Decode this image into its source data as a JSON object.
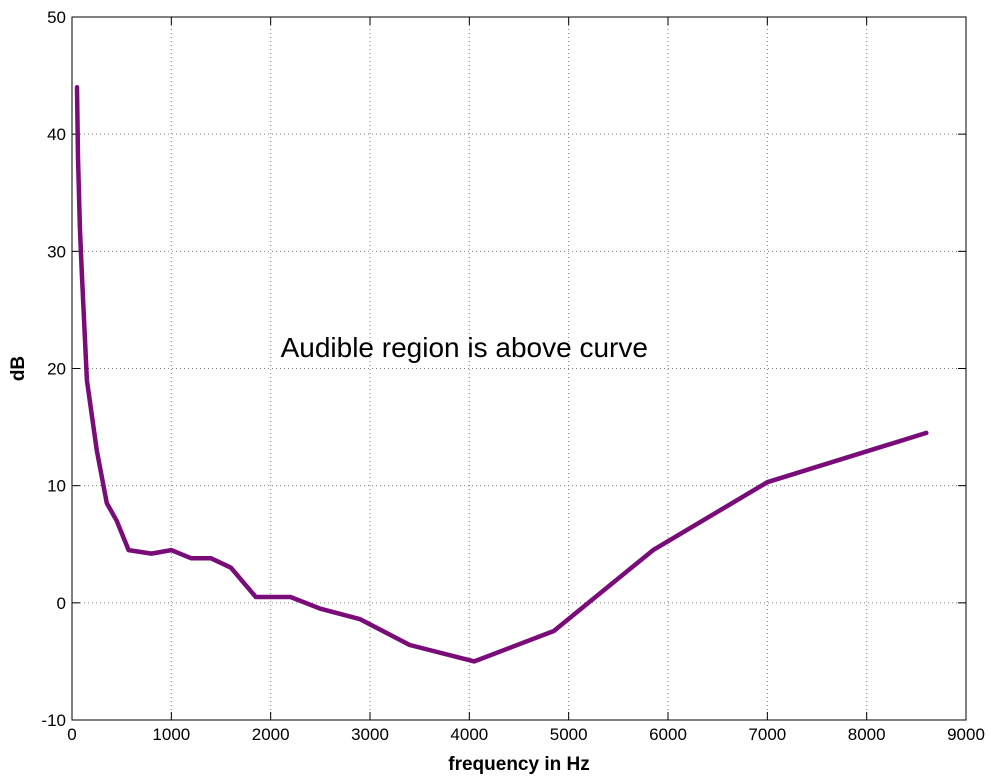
{
  "chart_data": {
    "type": "line",
    "title": "",
    "xlabel": "frequency in Hz",
    "ylabel": "dB",
    "xlim": [
      0,
      9000
    ],
    "ylim": [
      -10,
      50
    ],
    "xticks": [
      0,
      1000,
      2000,
      3000,
      4000,
      5000,
      6000,
      7000,
      8000,
      9000
    ],
    "yticks": [
      -10,
      0,
      10,
      20,
      30,
      40,
      50
    ],
    "grid": true,
    "legend": "none",
    "annotations": [
      {
        "text": "Audible region is above curve",
        "x": 2100,
        "y": 21
      }
    ],
    "series": [
      {
        "color": "#7a0c7a",
        "x": [
          50,
          60,
          80,
          100,
          150,
          250,
          350,
          450,
          570,
          800,
          1000,
          1200,
          1400,
          1600,
          1850,
          2200,
          2500,
          2900,
          3400,
          4050,
          4850,
          5850,
          7000,
          8600
        ],
        "y": [
          44,
          38,
          32,
          28,
          19,
          13,
          8.5,
          7,
          4.5,
          4.2,
          4.5,
          3.8,
          3.8,
          3,
          0.5,
          0.5,
          -0.5,
          -1.4,
          -3.6,
          -5,
          -2.4,
          4.5,
          10.3,
          14.5
        ]
      }
    ]
  }
}
